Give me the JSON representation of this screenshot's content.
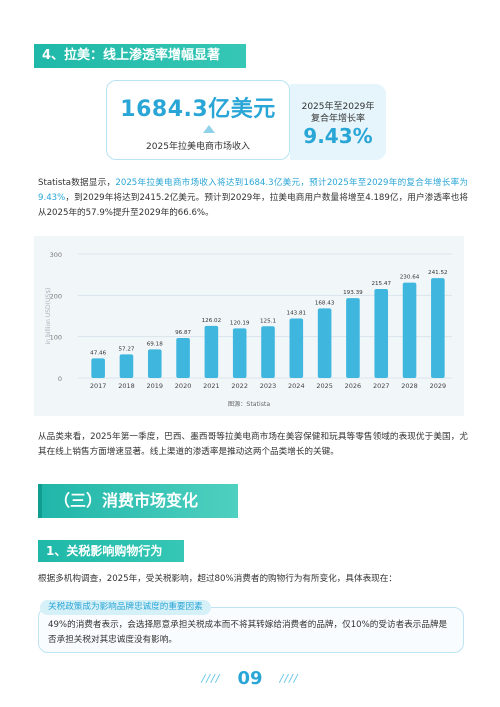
{
  "section4": {
    "title": "4、拉美：线上渗透率增幅显著"
  },
  "stat": {
    "revenue_value": "1684.3亿美元",
    "revenue_label": "2025年拉美电商市场收入",
    "rate_line1": "2025年至2029年",
    "rate_line2": "复合年增长率",
    "rate_value": "9.43%"
  },
  "para1": {
    "prefix": "Statista数据显示，",
    "highlight": "2025年拉美电商市场收入将达到1684.3亿美元，预计2025年至2029年的复合年增长率为9.43%",
    "suffix": "，到2029年将达到2415.2亿美元。预计到2029年，拉美电商用户数量将增至4.189亿，用户渗透率也将从2025年的57.9%提升至2029年的66.6%。"
  },
  "chart_data": {
    "type": "bar",
    "categories": [
      "2017",
      "2018",
      "2019",
      "2020",
      "2021",
      "2022",
      "2023",
      "2024",
      "2025",
      "2026",
      "2027",
      "2028",
      "2029"
    ],
    "values": [
      47.46,
      57.27,
      69.18,
      96.87,
      126.02,
      120.19,
      125.1,
      143.81,
      168.43,
      193.39,
      215.47,
      230.64,
      241.52
    ],
    "value_labels": [
      "47.46",
      "57.27",
      "69.18",
      "96.87",
      "126.02",
      "120.19",
      "125.1",
      "143.81",
      "168.43",
      "193.39",
      "215.47",
      "230.64",
      "241.52"
    ],
    "ylabel": "in billion USD(US$)",
    "ylim": [
      0,
      300
    ],
    "yticks": [
      "0",
      "100",
      "200",
      "300"
    ],
    "source": "图源：Statista",
    "bar_color": "#3fb6de",
    "grid": true
  },
  "para2": {
    "text": "从品类来看，2025年第一季度，巴西、墨西哥等拉美电商市场在美容保健和玩具等零售领域的表现优于美国，尤其在线上销售方面增速显著。线上渠道的渗透率是推动这两个品类增长的关键。"
  },
  "section3": {
    "title": "（三）消费市场变化"
  },
  "sub1": {
    "title": "1、关税影响购物行为"
  },
  "para3": {
    "text": "根据多机构调查，2025年，受关税影响，超过80%消费者的购物行为有所变化，具体表现在："
  },
  "callout": {
    "tag": "关税政策成为影响品牌忠诚度的重要因素",
    "text": "49%的消费者表示，会选择愿意承担关税成本而不将其转嫁给消费者的品牌，仅10%的受访者表示品牌是否承担关税对其忠诚度没有影响。"
  },
  "footer": {
    "slashes_left": "////",
    "page": "09",
    "slashes_right": "////"
  },
  "colors": {
    "accent": "#2aa6d6",
    "teal": "#1fb8a8"
  }
}
